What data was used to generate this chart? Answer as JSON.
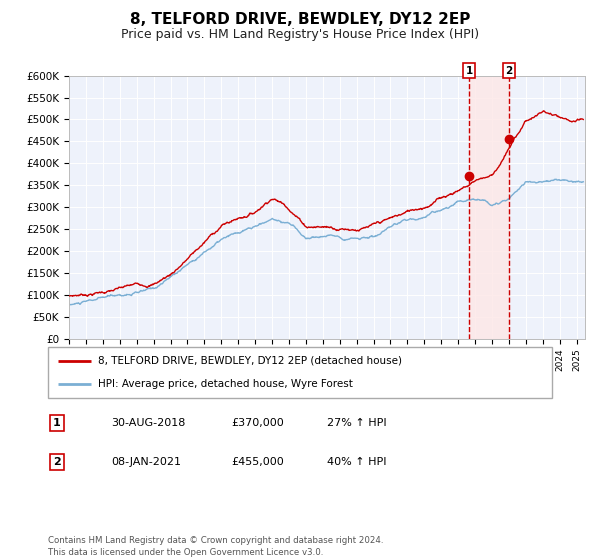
{
  "title": "8, TELFORD DRIVE, BEWDLEY, DY12 2EP",
  "subtitle": "Price paid vs. HM Land Registry's House Price Index (HPI)",
  "ylim": [
    0,
    600000
  ],
  "yticks": [
    0,
    50000,
    100000,
    150000,
    200000,
    250000,
    300000,
    350000,
    400000,
    450000,
    500000,
    550000,
    600000
  ],
  "ytick_labels": [
    "£0",
    "£50K",
    "£100K",
    "£150K",
    "£200K",
    "£250K",
    "£300K",
    "£350K",
    "£400K",
    "£450K",
    "£500K",
    "£550K",
    "£600K"
  ],
  "xlim_start": 1995.0,
  "xlim_end": 2025.5,
  "red_color": "#cc0000",
  "blue_color": "#7bafd4",
  "vline1_x": 2018.66,
  "vline2_x": 2021.02,
  "vline_color": "#cc0000",
  "shade_color": "#fde8e8",
  "marker1_x": 2018.66,
  "marker1_y": 370000,
  "marker2_x": 2021.02,
  "marker2_y": 455000,
  "legend1_label": "8, TELFORD DRIVE, BEWDLEY, DY12 2EP (detached house)",
  "legend2_label": "HPI: Average price, detached house, Wyre Forest",
  "note1_num": "1",
  "note1_date": "30-AUG-2018",
  "note1_price": "£370,000",
  "note1_pct": "27% ↑ HPI",
  "note2_num": "2",
  "note2_date": "08-JAN-2021",
  "note2_price": "£455,000",
  "note2_pct": "40% ↑ HPI",
  "footer": "Contains HM Land Registry data © Crown copyright and database right 2024.\nThis data is licensed under the Open Government Licence v3.0.",
  "plot_bg_color": "#eef2fb",
  "title_fontsize": 11,
  "subtitle_fontsize": 9
}
